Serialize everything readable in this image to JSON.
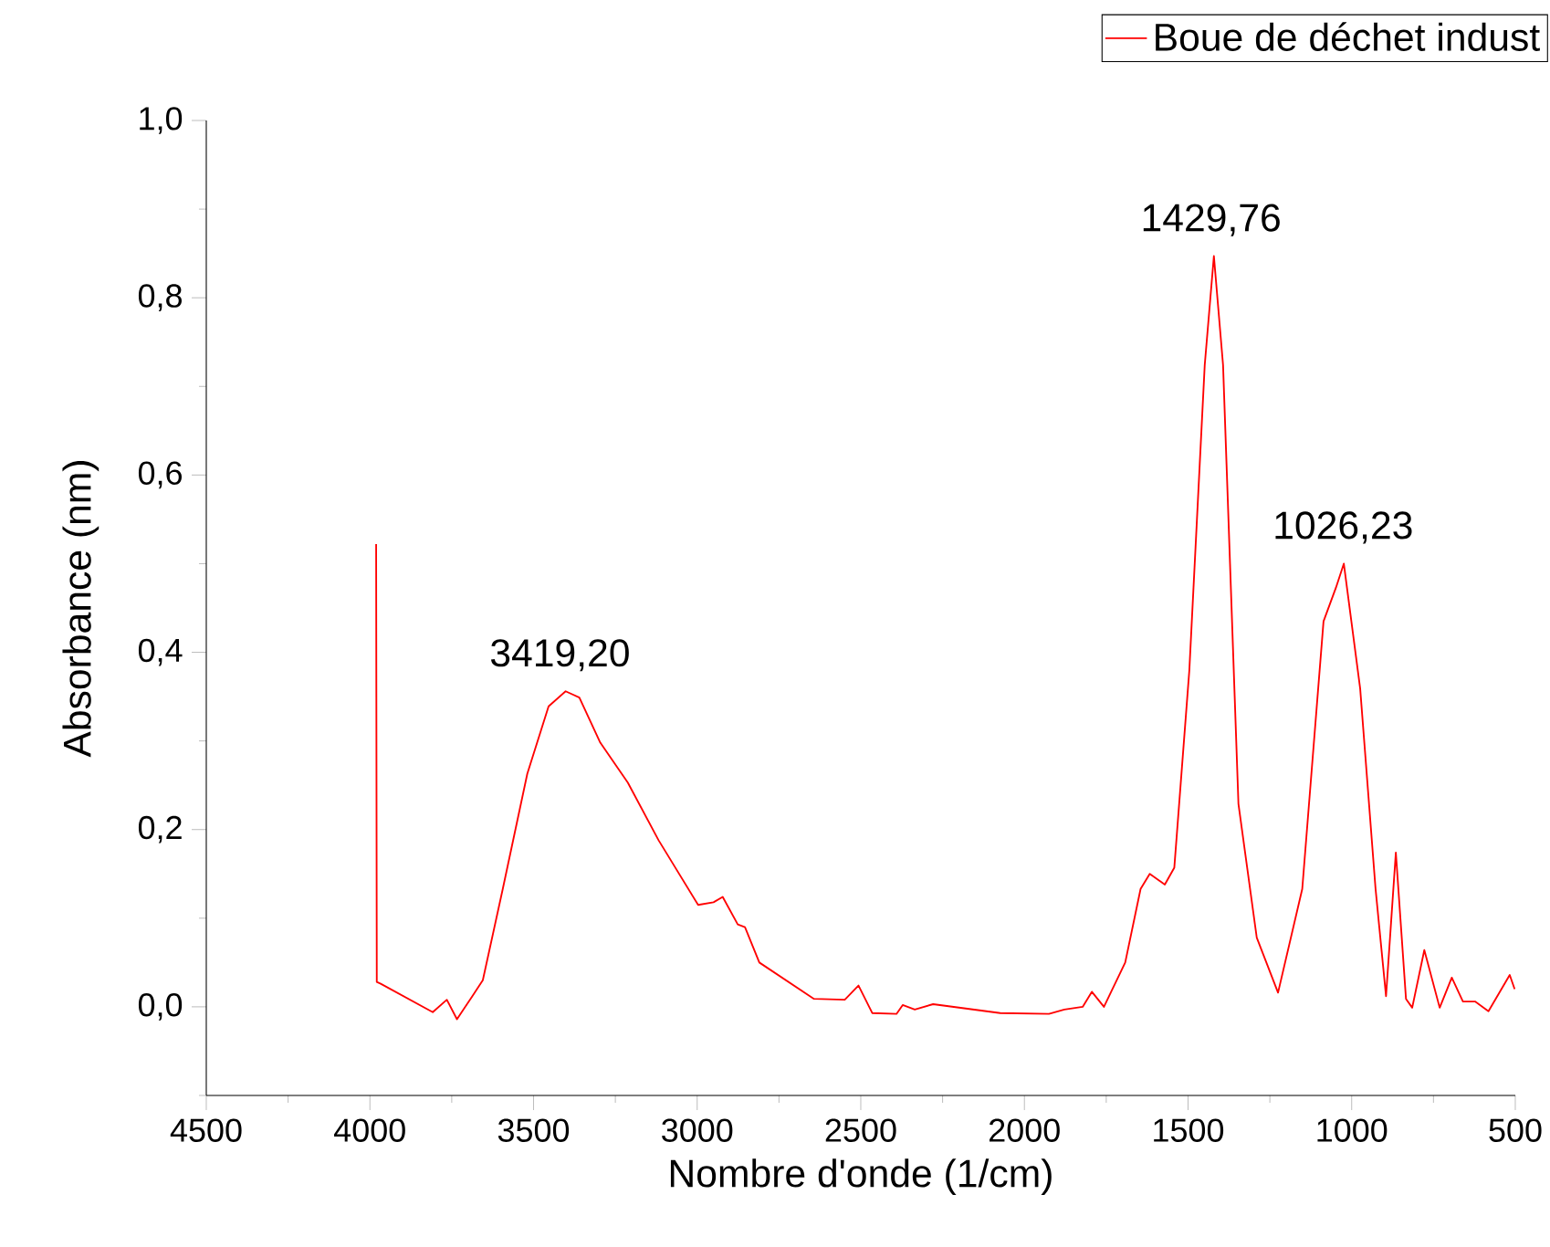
{
  "chart_data": {
    "type": "line",
    "xlabel": "Nombre d'onde (1/cm)",
    "ylabel": "Absorbance (nm)",
    "xlim": [
      4500,
      500
    ],
    "ylim": [
      -0.1,
      1.0
    ],
    "xticks": [
      4500,
      4000,
      3500,
      3000,
      2500,
      2000,
      1500,
      1000,
      500
    ],
    "yticks": [
      {
        "value": 0.0,
        "label": "0,0"
      },
      {
        "value": 0.2,
        "label": "0,2"
      },
      {
        "value": 0.4,
        "label": "0,4"
      },
      {
        "value": 0.6,
        "label": "0,6"
      },
      {
        "value": 0.8,
        "label": "0,8"
      },
      {
        "value": 1.0,
        "label": "1,0"
      }
    ],
    "legend": "top right",
    "grid": false,
    "marker": "none",
    "line_style": "solid",
    "annotations": [
      {
        "text": "3419,20",
        "x": 3419.2,
        "y": 0.356
      },
      {
        "text": "1429,76",
        "x": 1429.76,
        "y": 0.847
      },
      {
        "text": "1026,23",
        "x": 1026.23,
        "y": 0.5
      }
    ],
    "series": [
      {
        "name": "Boue de déchet indust",
        "color": "#ff0000",
        "x": [
          3981,
          3979,
          3967,
          3808,
          3765,
          3734,
          3687,
          3655,
          3594,
          3519,
          3454,
          3402,
          3360,
          3296,
          3212,
          3118,
          2997,
          2950,
          2922,
          2876,
          2854,
          2810,
          2643,
          2549,
          2507,
          2465,
          2391,
          2372,
          2335,
          2279,
          2074,
          1925,
          1878,
          1822,
          1794,
          1757,
          1692,
          1645,
          1617,
          1571,
          1542,
          1496,
          1449,
          1421,
          1393,
          1346,
          1290,
          1225,
          1151,
          1086,
          1048,
          1024,
          974,
          927,
          895,
          865,
          834,
          815,
          778,
          731,
          694,
          660,
          623,
          582,
          517,
          502
        ],
        "values": [
          0.522,
          0.028,
          0.026,
          -0.006,
          0.008,
          -0.014,
          0.012,
          0.03,
          0.133,
          0.263,
          0.339,
          0.356,
          0.349,
          0.298,
          0.253,
          0.188,
          0.115,
          0.118,
          0.124,
          0.093,
          0.09,
          0.05,
          0.009,
          0.008,
          0.024,
          -0.007,
          -0.008,
          0.002,
          -0.003,
          0.003,
          -0.007,
          -0.008,
          -0.003,
          0.0,
          0.017,
          0.0,
          0.05,
          0.133,
          0.15,
          0.138,
          0.157,
          0.38,
          0.724,
          0.847,
          0.724,
          0.229,
          0.078,
          0.016,
          0.133,
          0.435,
          0.473,
          0.5,
          0.359,
          0.133,
          0.012,
          0.174,
          0.009,
          -0.001,
          0.064,
          -0.001,
          0.033,
          0.006,
          0.006,
          -0.005,
          0.036,
          0.02
        ]
      }
    ]
  }
}
